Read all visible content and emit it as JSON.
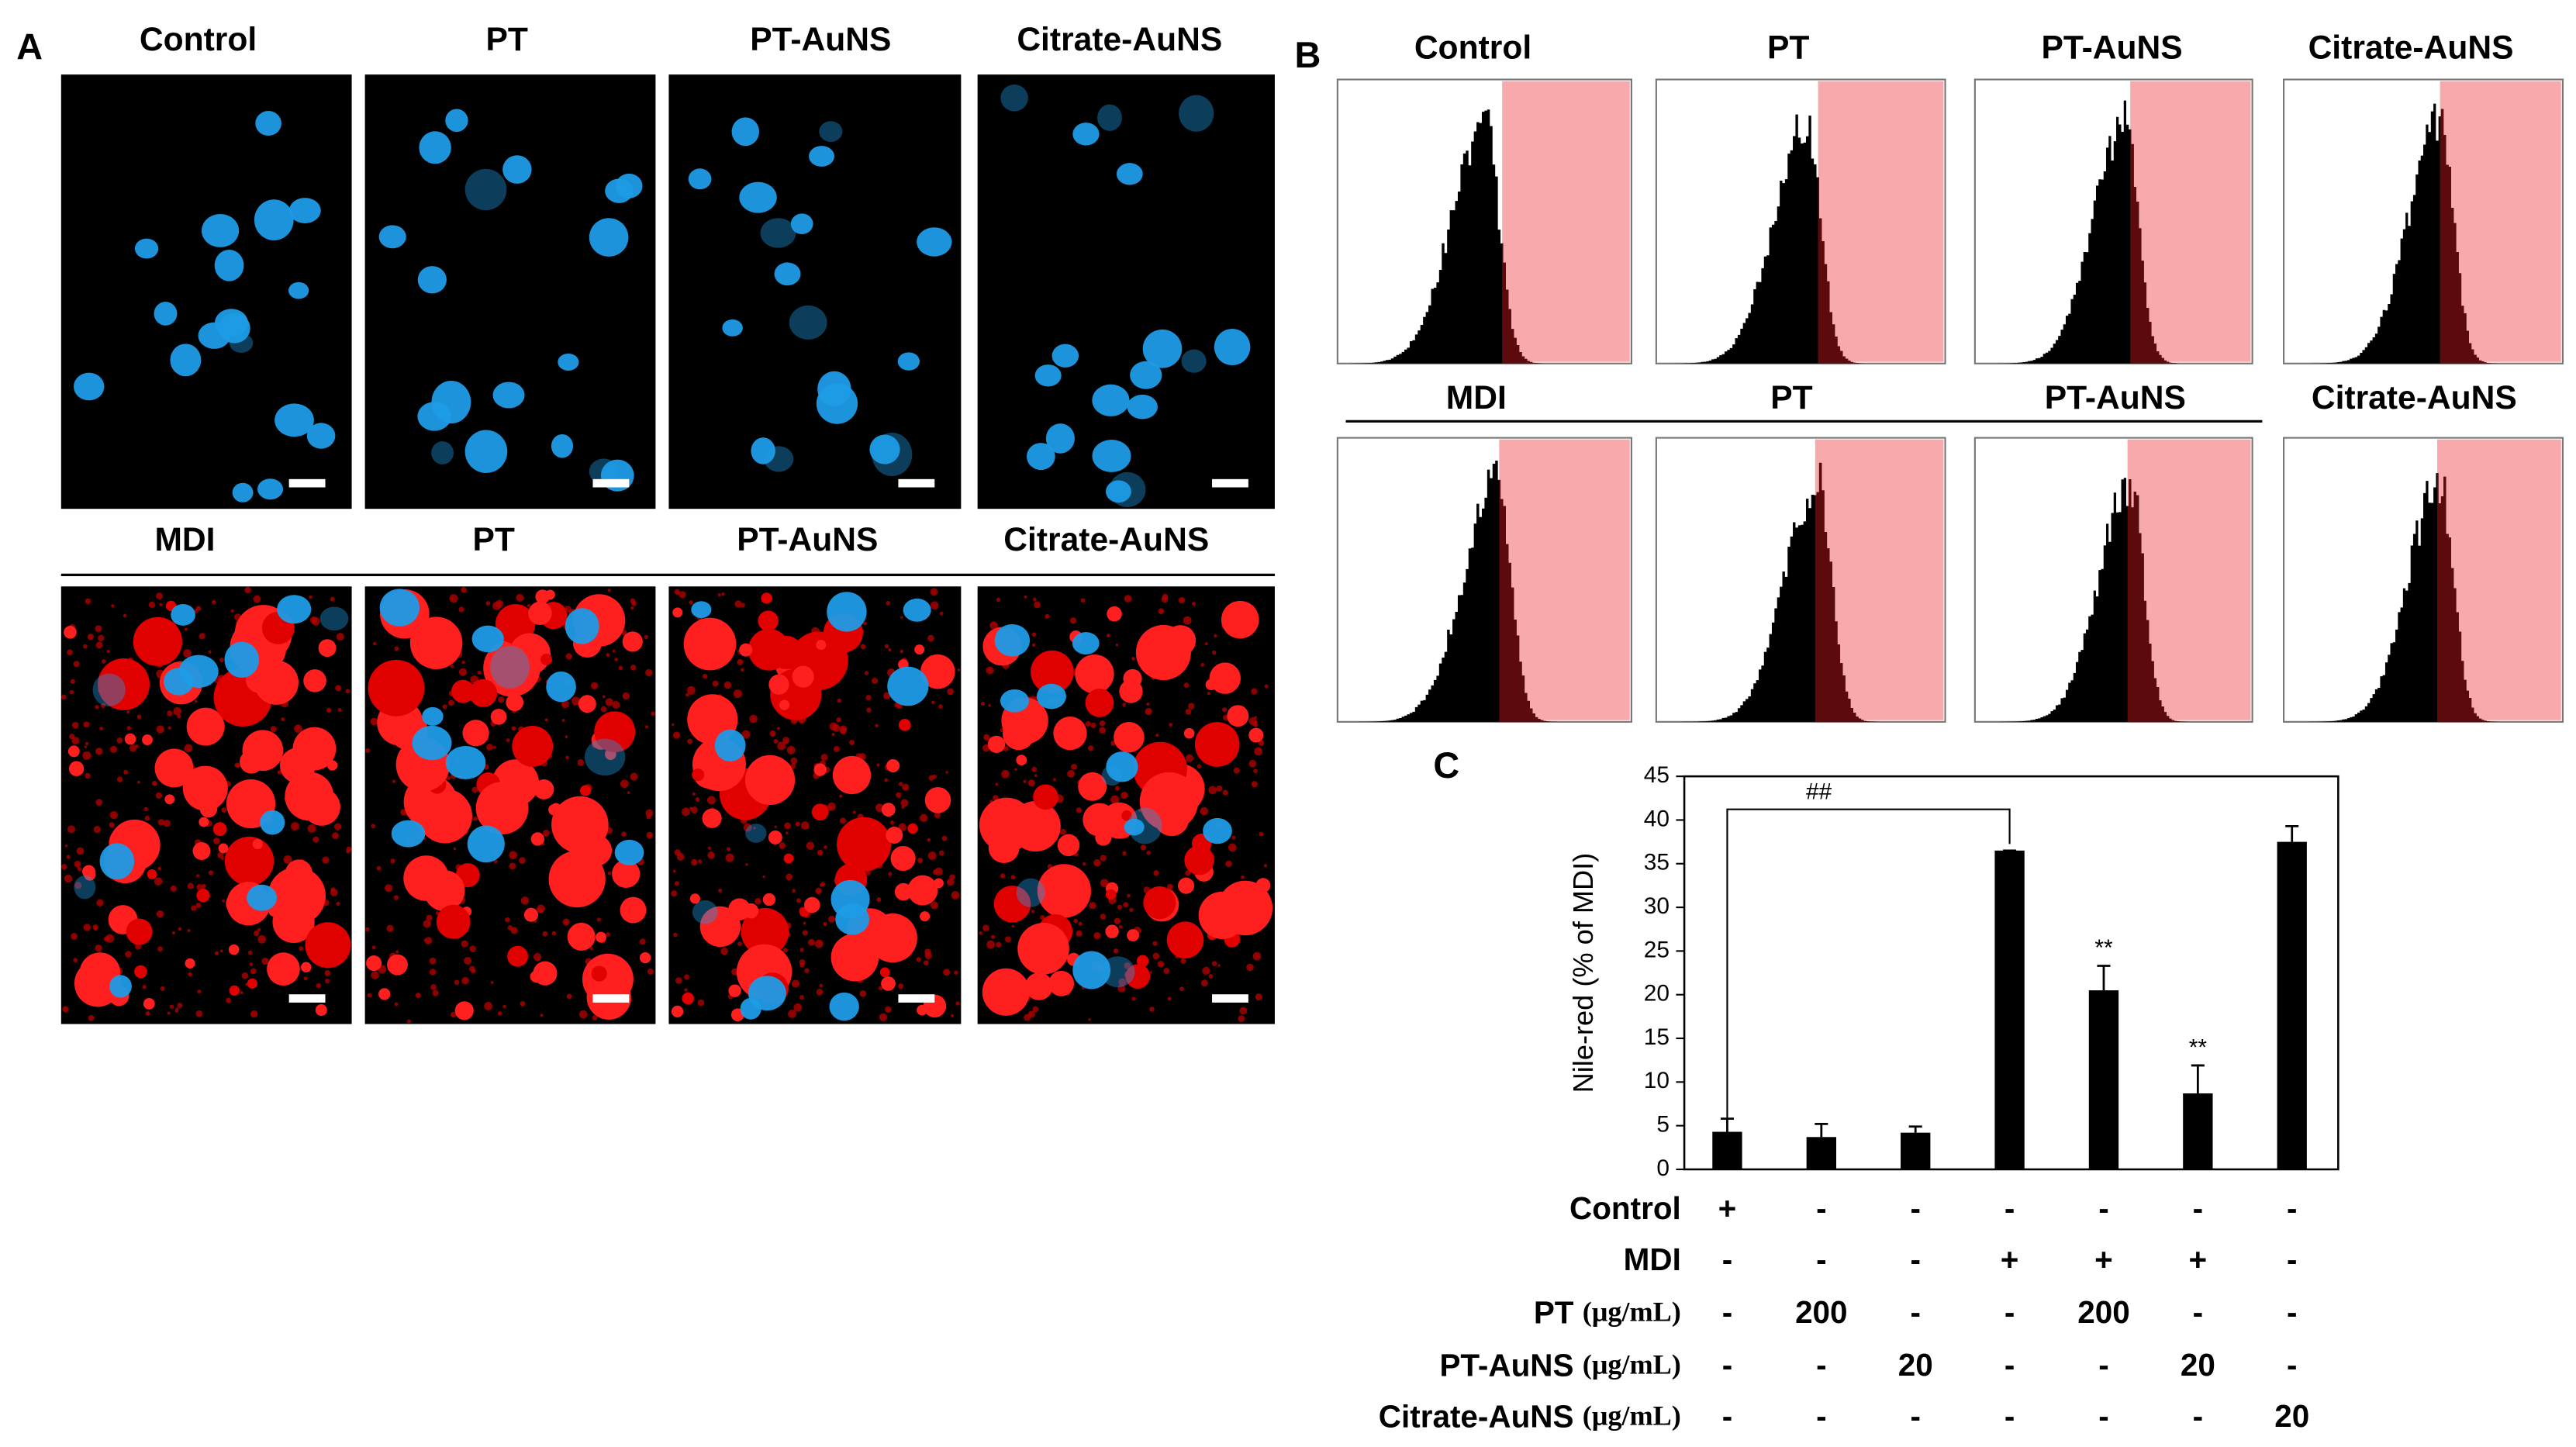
{
  "panel_a": {
    "label": "A",
    "top_titles": [
      "Control",
      "PT",
      "PT-AuNS",
      "Citrate-AuNS"
    ],
    "bottom_titles": [
      "MDI",
      "PT",
      "PT-AuNS",
      "Citrate-AuNS"
    ]
  },
  "panel_b": {
    "label": "B",
    "top_titles": [
      "Control",
      "PT",
      "PT-AuNS",
      "Citrate-AuNS"
    ],
    "bottom_titles": [
      "MDI",
      "PT",
      "PT-AuNS",
      "Citrate-AuNS"
    ]
  },
  "panel_c": {
    "label": "C"
  },
  "chart_data": {
    "type": "bar",
    "ylabel": "Nile-red (% of MDI)",
    "ylim": [
      0,
      45
    ],
    "yticks": [
      0,
      5,
      10,
      15,
      20,
      25,
      30,
      35,
      40,
      45
    ],
    "values": [
      4.3,
      3.7,
      4.2,
      36.5,
      20.5,
      8.7,
      37.5
    ],
    "errors": [
      1.5,
      1.5,
      0.7,
      0,
      2.8,
      3.2,
      1.8
    ],
    "color": "#000000",
    "markers": [
      null,
      null,
      null,
      null,
      "**",
      "**",
      null
    ],
    "bracket_label": "##"
  },
  "treatments": [
    {
      "label": "Control",
      "cells": [
        "+",
        "-",
        "-",
        "-",
        "-",
        "-",
        "-"
      ]
    },
    {
      "label": "MDI",
      "cells": [
        "-",
        "-",
        "-",
        "+",
        "+",
        "+",
        "-"
      ]
    },
    {
      "label": "PT",
      "unit": "(μg/mL)",
      "cells": [
        "-",
        "200",
        "-",
        "-",
        "200",
        "-",
        "-"
      ]
    },
    {
      "label": "PT-AuNS",
      "unit": "(μg/mL)",
      "cells": [
        "-",
        "-",
        "20",
        "-",
        "-",
        "20",
        "-"
      ]
    },
    {
      "label": "Citrate-AuNS",
      "unit": "(μg/mL)",
      "cells": [
        "-",
        "-",
        "-",
        "-",
        "-",
        "-",
        "20"
      ]
    }
  ]
}
